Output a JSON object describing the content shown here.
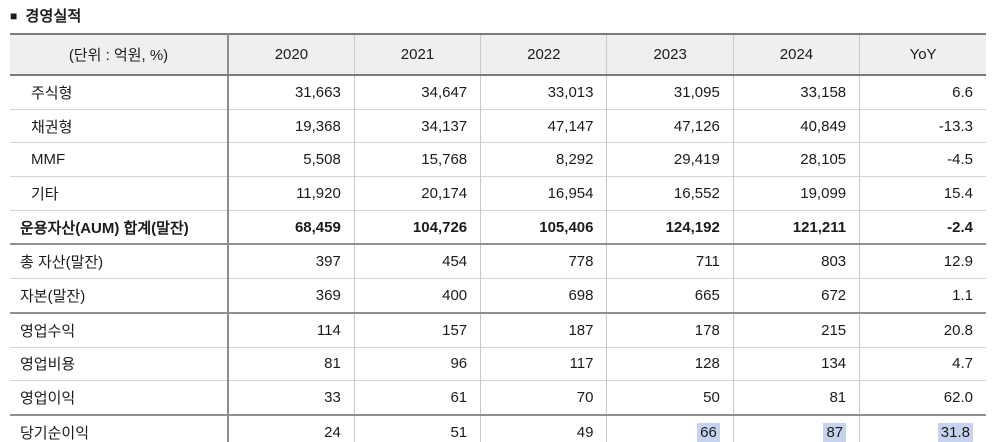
{
  "title": {
    "bullet": "■",
    "text": "경영실적"
  },
  "colors": {
    "header_bg": "#efefef",
    "highlight": "#c7d3ee"
  },
  "table": {
    "unit_label": "(단위 : 억원, %)",
    "columns": [
      "2020",
      "2021",
      "2022",
      "2023",
      "2024",
      "YoY"
    ],
    "rows": [
      {
        "label": "주식형",
        "indent": true,
        "values": [
          "31,663",
          "34,647",
          "33,013",
          "31,095",
          "33,158",
          "6.6"
        ]
      },
      {
        "label": "채권형",
        "indent": true,
        "values": [
          "19,368",
          "34,137",
          "47,147",
          "47,126",
          "40,849",
          "-13.3"
        ]
      },
      {
        "label": "MMF",
        "indent": true,
        "values": [
          "5,508",
          "15,768",
          "8,292",
          "29,419",
          "28,105",
          "-4.5"
        ]
      },
      {
        "label": "기타",
        "indent": true,
        "values": [
          "11,920",
          "20,174",
          "16,954",
          "16,552",
          "19,099",
          "15.4"
        ]
      },
      {
        "label": "운용자산(AUM) 합계(말잔)",
        "bold": true,
        "values": [
          "68,459",
          "104,726",
          "105,406",
          "124,192",
          "121,211",
          "-2.4"
        ]
      },
      {
        "label": "총 자산(말잔)",
        "section": true,
        "values": [
          "397",
          "454",
          "778",
          "711",
          "803",
          "12.9"
        ]
      },
      {
        "label": "자본(말잔)",
        "values": [
          "369",
          "400",
          "698",
          "665",
          "672",
          "1.1"
        ]
      },
      {
        "label": "영업수익",
        "section": true,
        "values": [
          "114",
          "157",
          "187",
          "178",
          "215",
          "20.8"
        ]
      },
      {
        "label": "영업비용",
        "values": [
          "81",
          "96",
          "117",
          "128",
          "134",
          "4.7"
        ]
      },
      {
        "label": "영업이익",
        "values": [
          "33",
          "61",
          "70",
          "50",
          "81",
          "62.0"
        ]
      },
      {
        "label": "당기순이익",
        "section": true,
        "highlight": [
          3,
          4,
          5
        ],
        "values": [
          "24",
          "51",
          "49",
          "66",
          "87",
          "31.8"
        ]
      }
    ]
  }
}
